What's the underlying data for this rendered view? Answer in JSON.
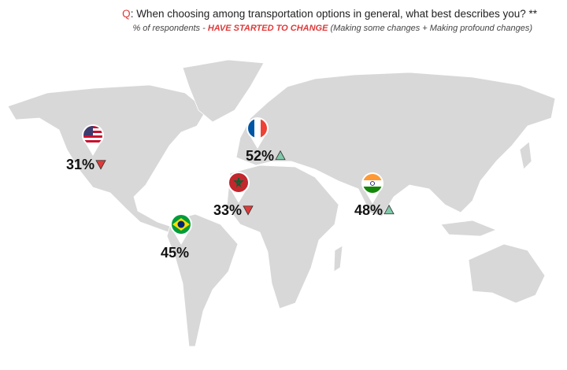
{
  "header": {
    "title": {
      "prefix": "Q",
      "text": ": When choosing among transportation options in general, what best describes you? **"
    },
    "subtitle": {
      "lead": "% of respondents - ",
      "emphasis": "HAVE STARTED TO CHANGE",
      "note": " (Making some changes + Making profound changes)"
    }
  },
  "markers": [
    {
      "label": "31%",
      "trend": "down"
    },
    {
      "label": "52%",
      "trend": "up"
    },
    {
      "label": "33%",
      "trend": "down"
    },
    {
      "label": "48%",
      "trend": "up"
    },
    {
      "label": "45%"
    }
  ]
}
